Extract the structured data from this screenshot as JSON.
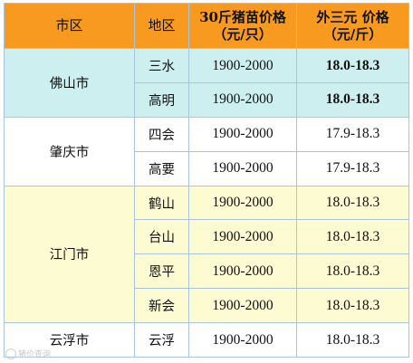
{
  "table": {
    "headers": {
      "city": "市区",
      "district": "地区",
      "price30": "30斤猪苗价格\n（元/只）",
      "outsidePrice": "外三元  价格\n（元/斤）"
    },
    "rows": [
      {
        "city": "佛山市",
        "district": "三水",
        "price30": "1900-2000",
        "outside": "18.0-18.3"
      },
      {
        "city": "",
        "district": "高明",
        "price30": "1900-2000",
        "outside": "18.0-18.3"
      },
      {
        "city": "肇庆市",
        "district": "四会",
        "price30": "1900-2000",
        "outside": "17.9-18.3"
      },
      {
        "city": "",
        "district": "高要",
        "price30": "1900-2000",
        "outside": "17.9-18.3"
      },
      {
        "city": "江门市",
        "district": "鹤山",
        "price30": "1900-2000",
        "outside": "18.0-18.3"
      },
      {
        "city": "",
        "district": "台山",
        "price30": "1900-2000",
        "outside": "18.0-18.3"
      },
      {
        "city": "",
        "district": "恩平",
        "price30": "1900-2000",
        "outside": "18.0-18.3"
      },
      {
        "city": "",
        "district": "新会",
        "price30": "1900-2000",
        "outside": "18.0-18.3"
      },
      {
        "city": "云浮市",
        "district": "云浮",
        "price30": "1900-2000",
        "outside": "18.0-18.3"
      }
    ]
  },
  "colors": {
    "header": "#f79a1f",
    "foshan": "#cdeff0",
    "zhaoqing": "#ffffff",
    "jiangmen": "#fdfbd2",
    "yunfu": "#ffffff",
    "highlight_text": "#19a030"
  },
  "watermark": {
    "logo_icon": "watermark-logo-icon",
    "text": "猪价查询"
  }
}
